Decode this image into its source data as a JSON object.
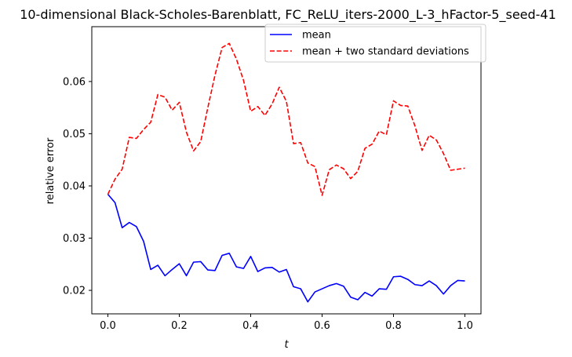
{
  "chart_data": {
    "type": "line",
    "title": "10-dimensional Black-Scholes-Barenblatt, FC_ReLU_iters-2000_L-3_hFactor-5_seed-41",
    "xlabel": "t",
    "ylabel": "relative error",
    "xlim": [
      -0.045,
      1.045
    ],
    "ylim": [
      0.0155,
      0.0705
    ],
    "xticks": [
      0.0,
      0.2,
      0.4,
      0.6,
      0.8,
      1.0
    ],
    "xtick_labels": [
      "0.0",
      "0.2",
      "0.4",
      "0.6",
      "0.8",
      "1.0"
    ],
    "yticks": [
      0.02,
      0.03,
      0.04,
      0.05,
      0.06
    ],
    "ytick_labels": [
      "0.02",
      "0.03",
      "0.04",
      "0.05",
      "0.06"
    ],
    "grid": false,
    "legend_position": "top-right",
    "x": [
      0.0,
      0.02,
      0.04,
      0.06,
      0.08,
      0.1,
      0.12,
      0.14,
      0.16,
      0.18,
      0.2,
      0.22,
      0.24,
      0.26,
      0.28,
      0.3,
      0.32,
      0.34,
      0.36,
      0.38,
      0.4,
      0.42,
      0.44,
      0.46,
      0.48,
      0.5,
      0.52,
      0.54,
      0.56,
      0.58,
      0.6,
      0.62,
      0.64,
      0.66,
      0.68,
      0.7,
      0.72,
      0.74,
      0.76,
      0.78,
      0.8,
      0.82,
      0.84,
      0.86,
      0.88,
      0.9,
      0.92,
      0.94,
      0.96,
      0.98,
      1.0
    ],
    "series": [
      {
        "name": "mean",
        "color": "#0000ff",
        "dash": "solid",
        "values": [
          0.0384,
          0.0368,
          0.032,
          0.033,
          0.0322,
          0.0294,
          0.024,
          0.0248,
          0.0228,
          0.024,
          0.0251,
          0.0228,
          0.0254,
          0.0255,
          0.0239,
          0.0238,
          0.0267,
          0.0271,
          0.0245,
          0.0242,
          0.0265,
          0.0236,
          0.0243,
          0.0244,
          0.0235,
          0.024,
          0.0207,
          0.0203,
          0.0178,
          0.0197,
          0.0203,
          0.0209,
          0.0213,
          0.0208,
          0.0187,
          0.0182,
          0.0196,
          0.0189,
          0.0203,
          0.0202,
          0.0226,
          0.0227,
          0.0221,
          0.0211,
          0.0209,
          0.0218,
          0.0209,
          0.0193,
          0.0209,
          0.0219,
          0.0218
        ]
      },
      {
        "name": "mean + two standard deviations",
        "color": "#ff0000",
        "dash": "dashed",
        "values": [
          0.0384,
          0.0413,
          0.0432,
          0.0493,
          0.0491,
          0.0508,
          0.0522,
          0.0575,
          0.057,
          0.0545,
          0.056,
          0.0503,
          0.0467,
          0.0485,
          0.055,
          0.0612,
          0.0665,
          0.0673,
          0.0643,
          0.0602,
          0.0543,
          0.0552,
          0.0535,
          0.0557,
          0.0589,
          0.0562,
          0.0481,
          0.0483,
          0.0444,
          0.0437,
          0.0382,
          0.0431,
          0.044,
          0.0433,
          0.0414,
          0.0428,
          0.0472,
          0.048,
          0.0505,
          0.0498,
          0.0563,
          0.0554,
          0.0553,
          0.0515,
          0.0468,
          0.0497,
          0.0488,
          0.0462,
          0.043,
          0.0432,
          0.0434
        ]
      }
    ]
  }
}
